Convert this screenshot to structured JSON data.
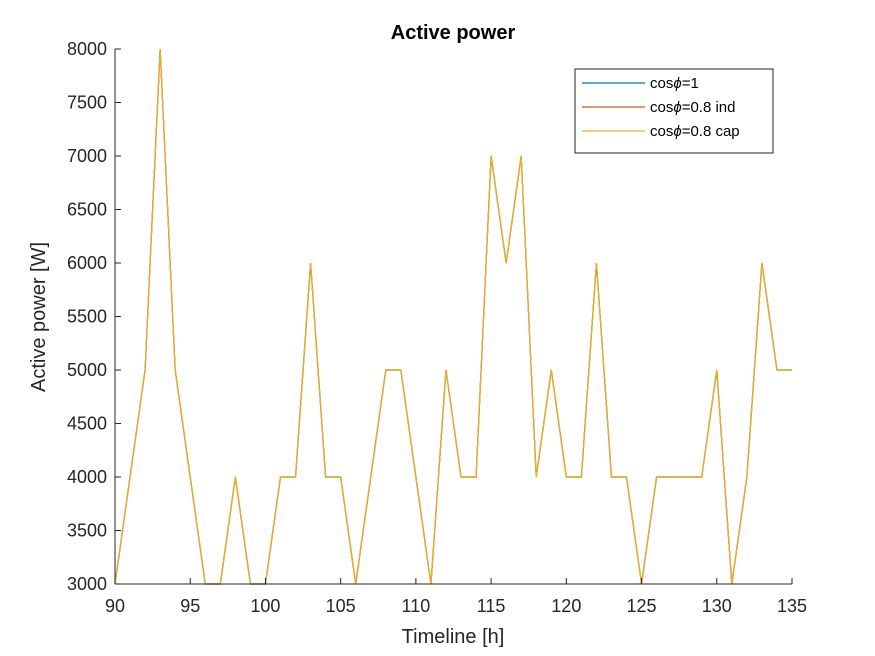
{
  "chart_data": {
    "type": "line",
    "title": "Active power",
    "xlabel": "Timeline [h]",
    "ylabel": "Active power [W]",
    "xlim": [
      90,
      135
    ],
    "ylim": [
      3000,
      8000
    ],
    "x_ticks": [
      90,
      95,
      100,
      105,
      110,
      115,
      120,
      125,
      130,
      135
    ],
    "y_ticks": [
      3000,
      3500,
      4000,
      4500,
      5000,
      5500,
      6000,
      6500,
      7000,
      7500,
      8000
    ],
    "grid": false,
    "legend_position": "top-right",
    "series": [
      {
        "name": "cosϕ=1",
        "legend_prefix": "cos",
        "legend_symbol": "ϕ",
        "legend_suffix": "=1",
        "color": "#0072BD",
        "x": [
          90,
          91,
          92,
          93,
          94,
          95,
          96,
          97,
          98,
          99,
          100,
          101,
          102,
          103,
          104,
          105,
          106,
          107,
          108,
          109,
          110,
          111,
          112,
          113,
          114,
          115,
          116,
          117,
          118,
          119,
          120,
          121,
          122,
          123,
          124,
          125,
          126,
          127,
          128,
          129,
          130,
          131,
          132,
          133,
          134,
          135
        ],
        "y": [
          3000,
          4000,
          5000,
          8000,
          5000,
          4000,
          3000,
          3000,
          4000,
          3000,
          3000,
          4000,
          4000,
          6000,
          4000,
          4000,
          3000,
          4000,
          5000,
          5000,
          4000,
          3000,
          5000,
          4000,
          4000,
          7000,
          6000,
          7000,
          4000,
          5000,
          4000,
          4000,
          6000,
          4000,
          4000,
          3000,
          4000,
          4000,
          4000,
          4000,
          5000,
          3000,
          4000,
          6000,
          5000,
          5000
        ]
      },
      {
        "name": "cosϕ=0.8 ind",
        "legend_prefix": "cos",
        "legend_symbol": "ϕ",
        "legend_suffix": "=0.8 ind",
        "color": "#D95319",
        "x": [
          90,
          91,
          92,
          93,
          94,
          95,
          96,
          97,
          98,
          99,
          100,
          101,
          102,
          103,
          104,
          105,
          106,
          107,
          108,
          109,
          110,
          111,
          112,
          113,
          114,
          115,
          116,
          117,
          118,
          119,
          120,
          121,
          122,
          123,
          124,
          125,
          126,
          127,
          128,
          129,
          130,
          131,
          132,
          133,
          134,
          135
        ],
        "y": [
          3000,
          4000,
          5000,
          8000,
          5000,
          4000,
          3000,
          3000,
          4000,
          3000,
          3000,
          4000,
          4000,
          6000,
          4000,
          4000,
          3000,
          4000,
          5000,
          5000,
          4000,
          3000,
          5000,
          4000,
          4000,
          7000,
          6000,
          7000,
          4000,
          5000,
          4000,
          4000,
          6000,
          4000,
          4000,
          3000,
          4000,
          4000,
          4000,
          4000,
          5000,
          3000,
          4000,
          6000,
          5000,
          5000
        ]
      },
      {
        "name": "cosϕ=0.8 cap",
        "legend_prefix": "cos",
        "legend_symbol": "ϕ",
        "legend_suffix": "=0.8 cap",
        "color": "#EDB120",
        "x": [
          90,
          91,
          92,
          93,
          94,
          95,
          96,
          97,
          98,
          99,
          100,
          101,
          102,
          103,
          104,
          105,
          106,
          107,
          108,
          109,
          110,
          111,
          112,
          113,
          114,
          115,
          116,
          117,
          118,
          119,
          120,
          121,
          122,
          123,
          124,
          125,
          126,
          127,
          128,
          129,
          130,
          131,
          132,
          133,
          134,
          135
        ],
        "y": [
          3000,
          4000,
          5000,
          8000,
          5000,
          4000,
          3000,
          3000,
          4000,
          3000,
          3000,
          4000,
          4000,
          6000,
          4000,
          4000,
          3000,
          4000,
          5000,
          5000,
          4000,
          3000,
          5000,
          4000,
          4000,
          7000,
          6000,
          7000,
          4000,
          5000,
          4000,
          4000,
          6000,
          4000,
          4000,
          3000,
          4000,
          4000,
          4000,
          4000,
          5000,
          3000,
          4000,
          6000,
          5000,
          5000
        ]
      }
    ]
  }
}
